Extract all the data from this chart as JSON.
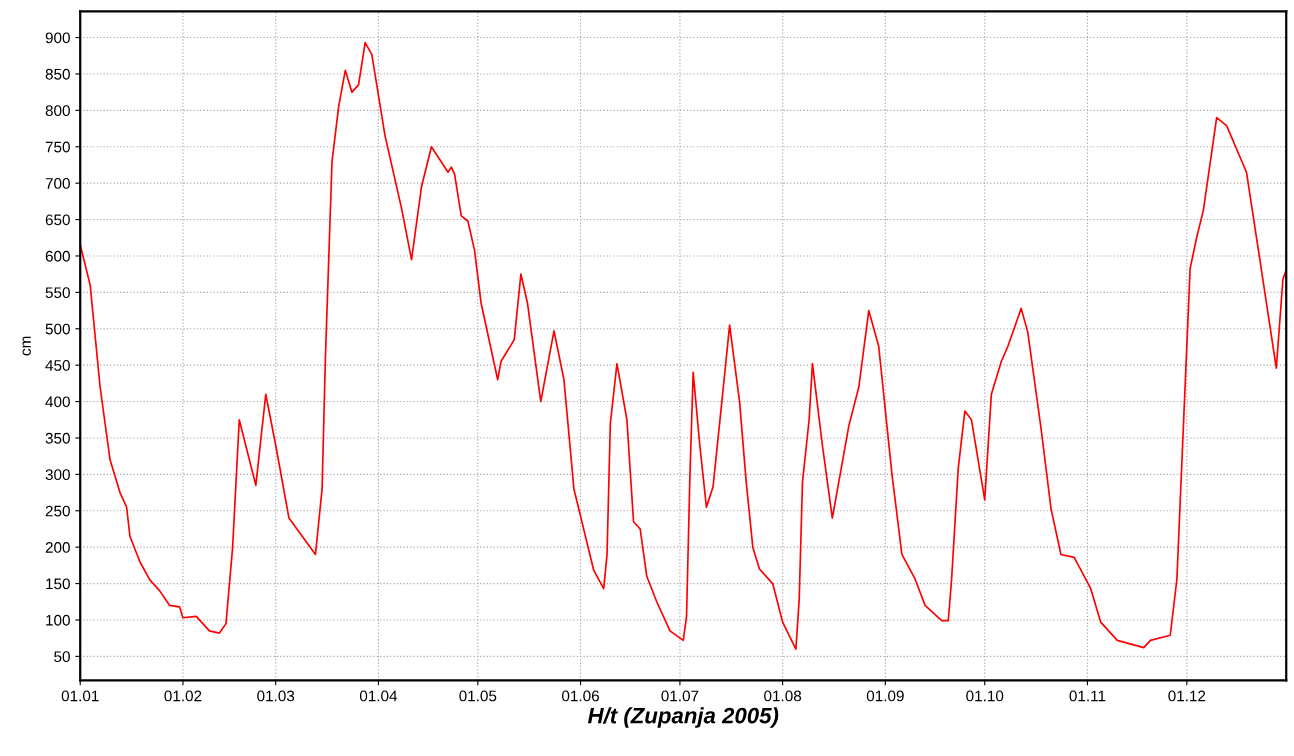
{
  "chart_data": {
    "type": "line",
    "xlabel": "H/t (Zupanja 2005)",
    "ylabel": "cm",
    "xlim": [
      "2005-01-01",
      "2005-12-31"
    ],
    "ylim": [
      17,
      936
    ],
    "xticks": [
      {
        "value": "2005-01-01",
        "label": "01.01"
      },
      {
        "value": "2005-02-01",
        "label": "01.02"
      },
      {
        "value": "2005-03-01",
        "label": "01.03"
      },
      {
        "value": "2005-04-01",
        "label": "01.04"
      },
      {
        "value": "2005-05-01",
        "label": "01.05"
      },
      {
        "value": "2005-06-01",
        "label": "01.06"
      },
      {
        "value": "2005-07-01",
        "label": "01.07"
      },
      {
        "value": "2005-08-01",
        "label": "01.08"
      },
      {
        "value": "2005-09-01",
        "label": "01.09"
      },
      {
        "value": "2005-10-01",
        "label": "01.10"
      },
      {
        "value": "2005-11-01",
        "label": "01.11"
      },
      {
        "value": "2005-12-01",
        "label": "01.12"
      }
    ],
    "yticks": [
      50,
      100,
      150,
      200,
      250,
      300,
      350,
      400,
      450,
      500,
      550,
      600,
      650,
      700,
      750,
      800,
      850,
      900
    ],
    "grid": true,
    "marker": "none",
    "line_style": "solid",
    "series": [
      {
        "color": "#ff0000",
        "x": [
          "2005-01-01",
          "2005-01-04",
          "2005-01-07",
          "2005-01-10",
          "2005-01-13",
          "2005-01-15",
          "2005-01-16",
          "2005-01-19",
          "2005-01-22",
          "2005-01-25",
          "2005-01-28",
          "2005-01-31",
          "2005-02-01",
          "2005-02-05",
          "2005-02-09",
          "2005-02-12",
          "2005-02-14",
          "2005-02-16",
          "2005-02-18",
          "2005-02-23",
          "2005-02-26",
          "2005-03-01",
          "2005-03-05",
          "2005-03-09",
          "2005-03-13",
          "2005-03-15",
          "2005-03-16",
          "2005-03-17",
          "2005-03-18",
          "2005-03-20",
          "2005-03-22",
          "2005-03-24",
          "2005-03-26",
          "2005-03-28",
          "2005-03-30",
          "2005-04-03",
          "2005-04-08",
          "2005-04-11",
          "2005-04-14",
          "2005-04-17",
          "2005-04-22",
          "2005-04-23",
          "2005-04-24",
          "2005-04-26",
          "2005-04-28",
          "2005-04-30",
          "2005-05-02",
          "2005-05-07",
          "2005-05-08",
          "2005-05-12",
          "2005-05-14",
          "2005-05-16",
          "2005-05-20",
          "2005-05-24",
          "2005-05-27",
          "2005-05-30",
          "2005-06-05",
          "2005-06-08",
          "2005-06-09",
          "2005-06-10",
          "2005-06-12",
          "2005-06-15",
          "2005-06-17",
          "2005-06-19",
          "2005-06-21",
          "2005-06-24",
          "2005-06-28",
          "2005-07-02",
          "2005-07-03",
          "2005-07-04",
          "2005-07-05",
          "2005-07-07",
          "2005-07-09",
          "2005-07-11",
          "2005-07-14",
          "2005-07-15",
          "2005-07-16",
          "2005-07-19",
          "2005-07-21",
          "2005-07-23",
          "2005-07-25",
          "2005-07-29",
          "2005-08-01",
          "2005-08-05",
          "2005-08-06",
          "2005-08-07",
          "2005-08-09",
          "2005-08-10",
          "2005-08-13",
          "2005-08-16",
          "2005-08-21",
          "2005-08-24",
          "2005-08-27",
          "2005-08-30",
          "2005-09-03",
          "2005-09-06",
          "2005-09-10",
          "2005-09-13",
          "2005-09-18",
          "2005-09-20",
          "2005-09-21",
          "2005-09-23",
          "2005-09-25",
          "2005-09-27",
          "2005-10-01",
          "2005-10-03",
          "2005-10-06",
          "2005-10-08",
          "2005-10-12",
          "2005-10-14",
          "2005-10-18",
          "2005-10-21",
          "2005-10-24",
          "2005-10-28",
          "2005-11-02",
          "2005-11-05",
          "2005-11-10",
          "2005-11-18",
          "2005-11-20",
          "2005-11-26",
          "2005-11-28",
          "2005-11-30",
          "2005-12-02",
          "2005-12-04",
          "2005-12-06",
          "2005-12-10",
          "2005-12-13",
          "2005-12-19",
          "2005-12-23",
          "2005-12-28",
          "2005-12-30",
          "2005-12-31"
        ],
        "values": [
          615,
          560,
          420,
          320,
          275,
          255,
          215,
          180,
          155,
          140,
          120,
          118,
          103,
          105,
          85,
          82,
          95,
          200,
          375,
          285,
          410,
          340,
          240,
          215,
          190,
          280,
          460,
          595,
          730,
          805,
          855,
          825,
          835,
          893,
          877,
          765,
          665,
          595,
          695,
          750,
          715,
          722,
          712,
          655,
          648,
          608,
          535,
          430,
          455,
          485,
          575,
          535,
          400,
          497,
          430,
          280,
          168,
          143,
          190,
          370,
          452,
          375,
          235,
          225,
          160,
          125,
          85,
          72,
          105,
          295,
          440,
          340,
          255,
          283,
          415,
          460,
          505,
          400,
          290,
          200,
          170,
          150,
          97,
          60,
          128,
          290,
          375,
          452,
          340,
          240,
          367,
          420,
          525,
          476,
          300,
          190,
          156,
          120,
          99,
          99,
          156,
          308,
          387,
          375,
          265,
          410,
          455,
          476,
          528,
          495,
          363,
          253,
          190,
          186,
          143,
          97,
          72,
          62,
          72,
          79,
          156,
          370,
          583,
          626,
          663,
          790,
          779,
          715,
          596,
          446,
          568,
          581
        ]
      }
    ]
  }
}
